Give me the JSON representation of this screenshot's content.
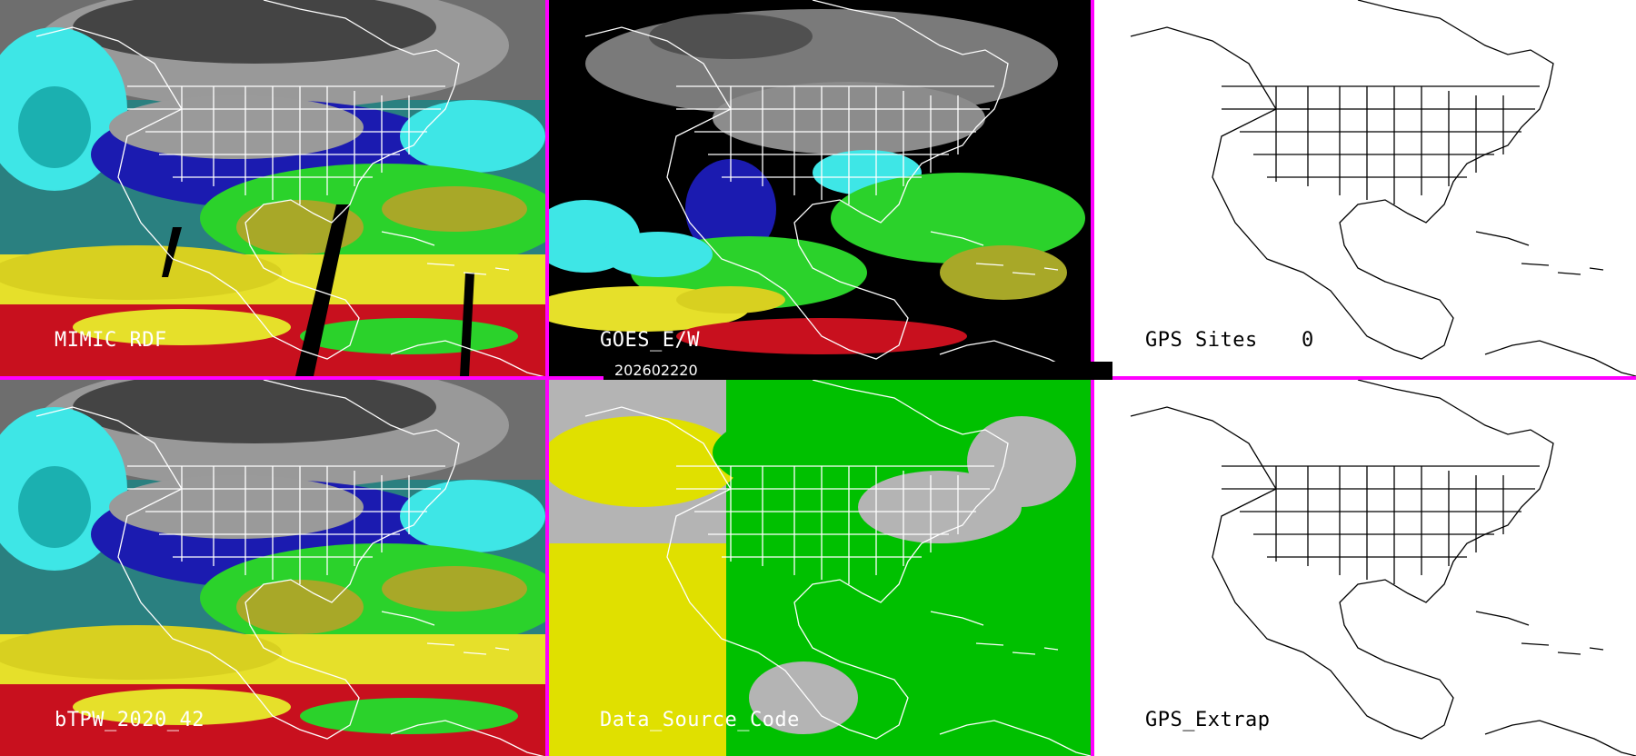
{
  "panels": {
    "mimic": {
      "label": "MIMIC RDF"
    },
    "goes": {
      "label": "GOES_E/W"
    },
    "gps_sites": {
      "label": "GPS Sites",
      "count": "0"
    },
    "btpw": {
      "label": "bTPW_2020_42"
    },
    "source": {
      "label": "Data_Source_Code"
    },
    "gps_extrap": {
      "label": "GPS_Extrap"
    }
  },
  "timestamp": "202602220",
  "colors": {
    "separator": "#ff00ff",
    "tpw_gray": "#8c8c8c",
    "tpw_navy": "#1b1bb0",
    "tpw_cyan": "#3ee6e6",
    "tpw_green": "#2bd22b",
    "tpw_olive": "#a8a828",
    "tpw_yellow": "#e6e02a",
    "tpw_red": "#c8101e",
    "source_gray": "#b4b4b4",
    "source_yellow": "#e0e000",
    "source_green": "#00c000"
  }
}
